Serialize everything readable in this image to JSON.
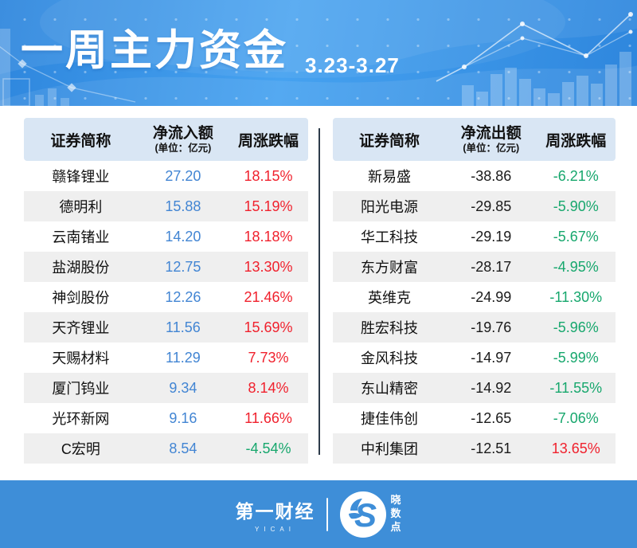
{
  "header": {
    "title": "一周主力资金",
    "date_range": "3.23-3.27"
  },
  "inflow_table": {
    "col_name": "证券简称",
    "col_amount": "净流入额",
    "col_amount_unit": "(单位：亿元)",
    "col_change": "周涨跌幅",
    "rows": [
      {
        "name": "赣锋锂业",
        "amount": "27.20",
        "change": "18.15%",
        "dir": "up"
      },
      {
        "name": "德明利",
        "amount": "15.88",
        "change": "15.19%",
        "dir": "up"
      },
      {
        "name": "云南锗业",
        "amount": "14.20",
        "change": "18.18%",
        "dir": "up"
      },
      {
        "name": "盐湖股份",
        "amount": "12.75",
        "change": "13.30%",
        "dir": "up"
      },
      {
        "name": "神剑股份",
        "amount": "12.26",
        "change": "21.46%",
        "dir": "up"
      },
      {
        "name": "天齐锂业",
        "amount": "11.56",
        "change": "15.69%",
        "dir": "up"
      },
      {
        "name": "天赐材料",
        "amount": "11.29",
        "change": "7.73%",
        "dir": "up"
      },
      {
        "name": "厦门钨业",
        "amount": "9.34",
        "change": "8.14%",
        "dir": "up"
      },
      {
        "name": "光环新网",
        "amount": "9.16",
        "change": "11.66%",
        "dir": "up"
      },
      {
        "name": "C宏明",
        "amount": "8.54",
        "change": "-4.54%",
        "dir": "down"
      }
    ]
  },
  "outflow_table": {
    "col_name": "证券简称",
    "col_amount": "净流出额",
    "col_amount_unit": "(单位：亿元)",
    "col_change": "周涨跌幅",
    "rows": [
      {
        "name": "新易盛",
        "amount": "-38.86",
        "change": "-6.21%",
        "dir": "down"
      },
      {
        "name": "阳光电源",
        "amount": "-29.85",
        "change": "-5.90%",
        "dir": "down"
      },
      {
        "name": "华工科技",
        "amount": "-29.19",
        "change": "-5.67%",
        "dir": "down"
      },
      {
        "name": "东方财富",
        "amount": "-28.17",
        "change": "-4.95%",
        "dir": "down"
      },
      {
        "name": "英维克",
        "amount": "-24.99",
        "change": "-11.30%",
        "dir": "down"
      },
      {
        "name": "胜宏科技",
        "amount": "-19.76",
        "change": "-5.96%",
        "dir": "down"
      },
      {
        "name": "金风科技",
        "amount": "-14.97",
        "change": "-5.99%",
        "dir": "down"
      },
      {
        "name": "东山精密",
        "amount": "-14.92",
        "change": "-11.55%",
        "dir": "down"
      },
      {
        "name": "捷佳伟创",
        "amount": "-12.65",
        "change": "-7.06%",
        "dir": "down"
      },
      {
        "name": "中利集团",
        "amount": "-12.51",
        "change": "13.65%",
        "dir": "up"
      }
    ]
  },
  "footer": {
    "brand_name": "第一财经",
    "brand_sub": "YICAI",
    "logo_letter": "S",
    "partner_chars": [
      "晓",
      "数",
      "点"
    ]
  },
  "colors": {
    "header_blue_1": "#46a2f0",
    "header_blue_2": "#2e86dd",
    "footer_blue": "#3e8ed8",
    "table_header_bg": "#d9e6f4",
    "row_stripe": "#efefef",
    "inflow_amount_blue": "#4285d3",
    "up_red": "#f0212d",
    "down_green": "#17a76d",
    "divider_dark": "#2d3b4a",
    "text_dark": "#111111"
  },
  "chart_data": [
    {
      "type": "table",
      "title": "净流入额 (单位：亿元)",
      "columns": [
        "证券简称",
        "净流入额",
        "周涨跌幅"
      ],
      "rows": [
        [
          "赣锋锂业",
          27.2,
          "18.15%"
        ],
        [
          "德明利",
          15.88,
          "15.19%"
        ],
        [
          "云南锗业",
          14.2,
          "18.18%"
        ],
        [
          "盐湖股份",
          12.75,
          "13.30%"
        ],
        [
          "神剑股份",
          12.26,
          "21.46%"
        ],
        [
          "天齐锂业",
          11.56,
          "15.69%"
        ],
        [
          "天赐材料",
          11.29,
          "7.73%"
        ],
        [
          "厦门钨业",
          9.34,
          "8.14%"
        ],
        [
          "光环新网",
          9.16,
          "11.66%"
        ],
        [
          "C宏明",
          8.54,
          "-4.54%"
        ]
      ]
    },
    {
      "type": "table",
      "title": "净流出额 (单位：亿元)",
      "columns": [
        "证券简称",
        "净流出额",
        "周涨跌幅"
      ],
      "rows": [
        [
          "新易盛",
          -38.86,
          "-6.21%"
        ],
        [
          "阳光电源",
          -29.85,
          "-5.90%"
        ],
        [
          "华工科技",
          -29.19,
          "-5.67%"
        ],
        [
          "东方财富",
          -28.17,
          "-4.95%"
        ],
        [
          "英维克",
          -24.99,
          "-11.30%"
        ],
        [
          "胜宏科技",
          -19.76,
          "-5.96%"
        ],
        [
          "金风科技",
          -14.97,
          "-5.99%"
        ],
        [
          "东山精密",
          -14.92,
          "-11.55%"
        ],
        [
          "捷佳伟创",
          -12.65,
          "-7.06%"
        ],
        [
          "中利集团",
          -12.51,
          "13.65%"
        ]
      ]
    }
  ]
}
